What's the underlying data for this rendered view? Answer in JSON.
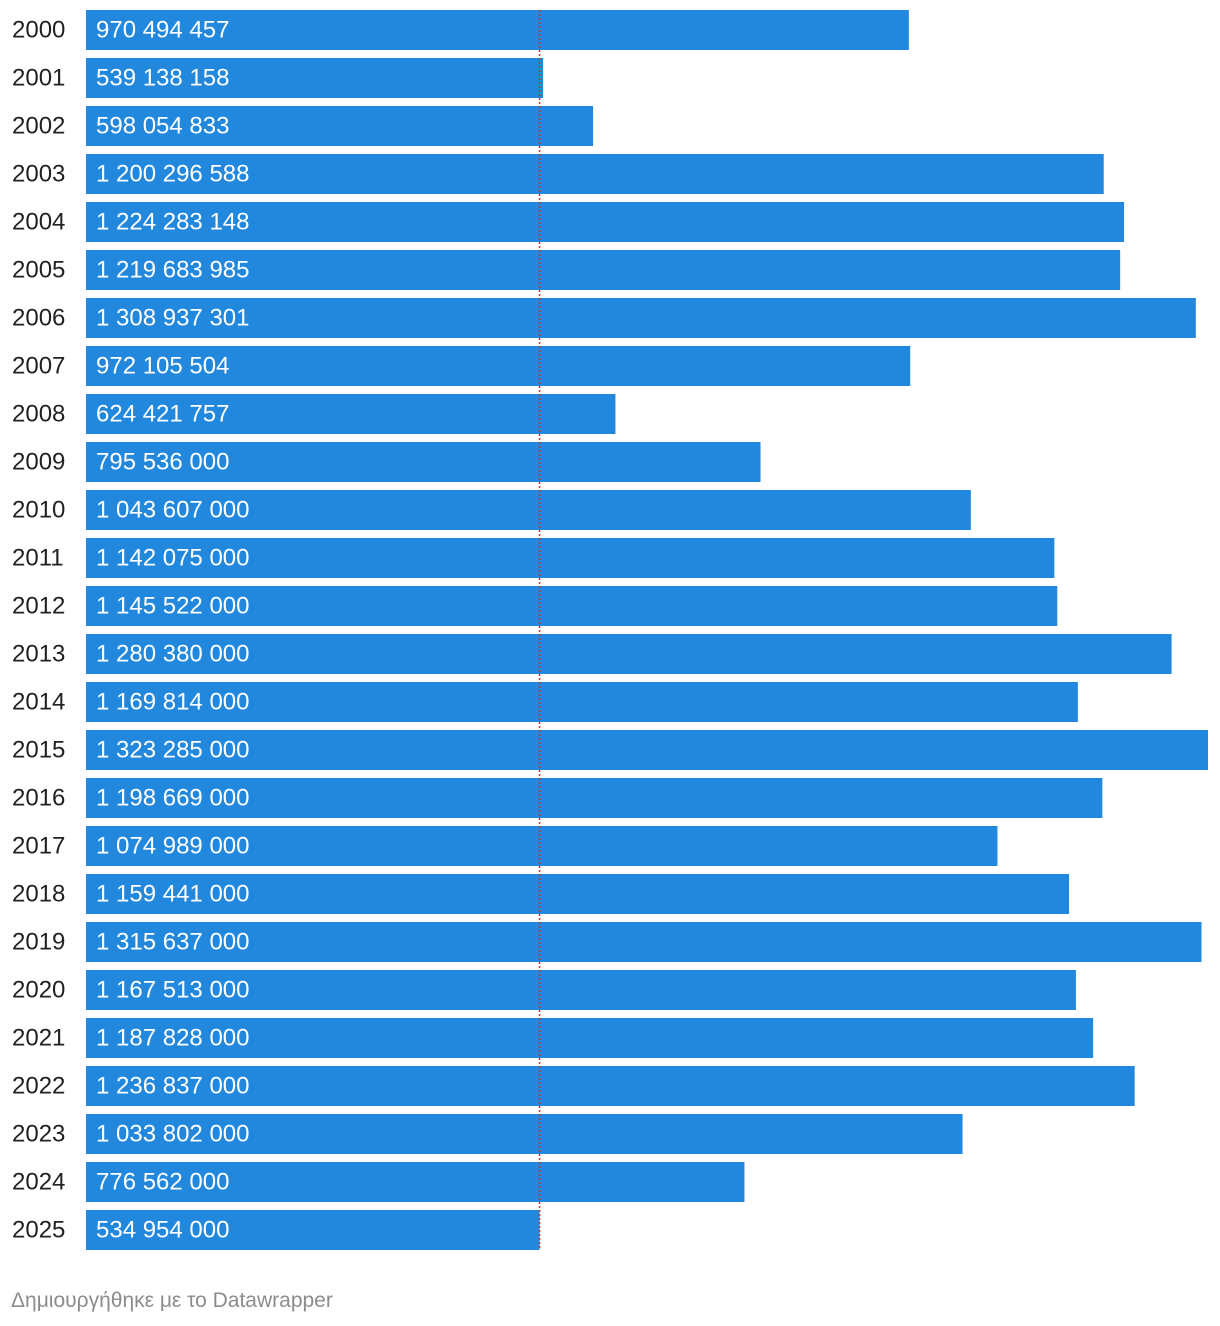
{
  "chart_data": {
    "type": "bar",
    "orientation": "horizontal",
    "categories": [
      "2000",
      "2001",
      "2002",
      "2003",
      "2004",
      "2005",
      "2006",
      "2007",
      "2008",
      "2009",
      "2010",
      "2011",
      "2012",
      "2013",
      "2014",
      "2015",
      "2016",
      "2017",
      "2018",
      "2019",
      "2020",
      "2021",
      "2022",
      "2023",
      "2024",
      "2025"
    ],
    "values": [
      970494457,
      539138158,
      598054833,
      1200296588,
      1224283148,
      1219683985,
      1308937301,
      972105504,
      624421757,
      795536000,
      1043607000,
      1142075000,
      1145522000,
      1280380000,
      1169814000,
      1323285000,
      1198669000,
      1074989000,
      1159441000,
      1315637000,
      1167513000,
      1187828000,
      1236837000,
      1033802000,
      776562000,
      534954000
    ],
    "value_labels": [
      "970 494 457",
      "539 138 158",
      "598 054 833",
      "1 200 296 588",
      "1 224 283 148",
      "1 219 683 985",
      "1 308 937 301",
      "972 105 504",
      "624 421 757",
      "795 536 000",
      "1 043 607 000",
      "1 142 075 000",
      "1 145 522 000",
      "1 280 380 000",
      "1 169 814 000",
      "1 323 285 000",
      "1 198 669 000",
      "1 074 989 000",
      "1 159 441 000",
      "1 315 637 000",
      "1 167 513 000",
      "1 187 828 000",
      "1 236 837 000",
      "1 033 802 000",
      "776 562 000",
      "534 954 000"
    ],
    "xlim": [
      0,
      1323285000
    ],
    "reference_line": {
      "value": 534954000,
      "style": "dotted",
      "color": "#c0392b"
    },
    "bar_color": "#2288dd",
    "grid": false,
    "legend": "none",
    "title": "",
    "xlabel": "",
    "ylabel": ""
  },
  "footer": {
    "credit": "Δημιουργήθηκε με το Datawrapper"
  }
}
